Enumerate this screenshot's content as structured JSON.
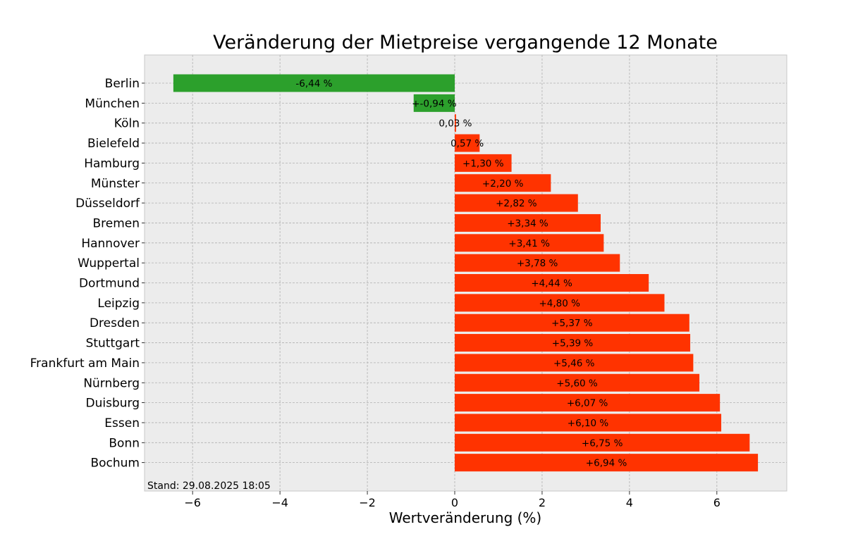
{
  "chart_data": {
    "type": "bar",
    "orientation": "horizontal",
    "title": "Veränderung der Mietpreise vergangende 12 Monate",
    "xlabel": "Wertveränderung (%)",
    "ylabel": "",
    "xlim": [
      -7.1,
      7.6
    ],
    "xticks": [
      -6,
      -4,
      -2,
      0,
      2,
      4,
      6
    ],
    "xtick_labels": [
      "−6",
      "−4",
      "−2",
      "0",
      "2",
      "4",
      "6"
    ],
    "grid": true,
    "footnote": "Stand: 29.08.2025 18:05",
    "colors": {
      "positive": "#ff3300",
      "negative": "#2ca02c",
      "background": "#ececec",
      "grid": "#b0b0b0"
    },
    "categories": [
      "Berlin",
      "München",
      "Köln",
      "Bielefeld",
      "Hamburg",
      "Münster",
      "Düsseldorf",
      "Bremen",
      "Hannover",
      "Wuppertal",
      "Dortmund",
      "Leipzig",
      "Dresden",
      "Stuttgart",
      "Frankfurt am Main",
      "Nürnberg",
      "Duisburg",
      "Essen",
      "Bonn",
      "Bochum"
    ],
    "values": [
      -6.44,
      -0.94,
      0.03,
      0.57,
      1.3,
      2.2,
      2.82,
      3.34,
      3.41,
      3.78,
      4.44,
      4.8,
      5.37,
      5.39,
      5.46,
      5.6,
      6.07,
      6.1,
      6.75,
      6.94
    ],
    "value_labels": [
      "-6,44 %",
      "+-0,94 %",
      "0,03 %",
      "0,57 %",
      "+1,30 %",
      "+2,20 %",
      "+2,82 %",
      "+3,34 %",
      "+3,41 %",
      "+3,78 %",
      "+4,44 %",
      "+4,80 %",
      "+5,37 %",
      "+5,39 %",
      "+5,46 %",
      "+5,60 %",
      "+6,07 %",
      "+6,10 %",
      "+6,75 %",
      "+6,94 %"
    ]
  }
}
